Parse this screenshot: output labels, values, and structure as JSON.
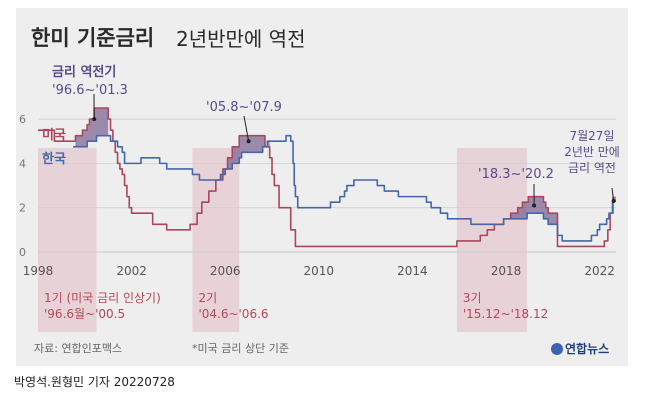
{
  "header": {
    "title_bold": "한미 기준금리",
    "title_rest": "2년반만에 역전"
  },
  "colors": {
    "us": "#a8485d",
    "korea": "#4567a8",
    "inversion_fill": "#7f6894",
    "period_shade": "#e4cdd2",
    "annotation_text": "#5a4a8a",
    "period_text": "#b04a5a"
  },
  "chart_data": {
    "type": "line",
    "title": "한미 기준금리 2년반만에 역전",
    "xlim": [
      1998,
      2022.7
    ],
    "ylim": [
      0,
      6.5
    ],
    "x_ticks": [
      1998,
      2002,
      2006,
      2010,
      2014,
      2018,
      2022
    ],
    "y_ticks": [
      0,
      2,
      4,
      6
    ],
    "series": [
      {
        "name": "미국",
        "step": true,
        "points": [
          [
            1998,
            5.5
          ],
          [
            1998.7,
            5.0
          ],
          [
            1999.5,
            5.0
          ],
          [
            1999.6,
            5.25
          ],
          [
            1999.9,
            5.5
          ],
          [
            2000.1,
            5.75
          ],
          [
            2000.2,
            6.0
          ],
          [
            2000.4,
            6.5
          ],
          [
            2001.0,
            6.0
          ],
          [
            2001.1,
            5.5
          ],
          [
            2001.2,
            5.0
          ],
          [
            2001.3,
            4.5
          ],
          [
            2001.4,
            4.0
          ],
          [
            2001.5,
            3.75
          ],
          [
            2001.6,
            3.5
          ],
          [
            2001.7,
            3.0
          ],
          [
            2001.8,
            2.5
          ],
          [
            2001.9,
            2.0
          ],
          [
            2002.0,
            1.75
          ],
          [
            2002.9,
            1.25
          ],
          [
            2003.5,
            1.0
          ],
          [
            2004.5,
            1.25
          ],
          [
            2004.8,
            1.75
          ],
          [
            2005.0,
            2.25
          ],
          [
            2005.3,
            2.75
          ],
          [
            2005.6,
            3.25
          ],
          [
            2005.9,
            3.75
          ],
          [
            2006.1,
            4.25
          ],
          [
            2006.3,
            4.75
          ],
          [
            2006.6,
            5.25
          ],
          [
            2007.7,
            4.75
          ],
          [
            2007.9,
            4.25
          ],
          [
            2008.0,
            3.5
          ],
          [
            2008.1,
            3.0
          ],
          [
            2008.3,
            2.0
          ],
          [
            2008.8,
            1.0
          ],
          [
            2009.0,
            0.25
          ],
          [
            2015.9,
            0.5
          ],
          [
            2016.9,
            0.75
          ],
          [
            2017.2,
            1.0
          ],
          [
            2017.5,
            1.25
          ],
          [
            2017.9,
            1.5
          ],
          [
            2018.2,
            1.75
          ],
          [
            2018.5,
            2.0
          ],
          [
            2018.7,
            2.25
          ],
          [
            2018.95,
            2.5
          ],
          [
            2019.6,
            2.25
          ],
          [
            2019.7,
            2.0
          ],
          [
            2019.8,
            1.75
          ],
          [
            2020.2,
            0.25
          ],
          [
            2022.2,
            0.5
          ],
          [
            2022.35,
            1.0
          ],
          [
            2022.45,
            1.75
          ],
          [
            2022.57,
            2.5
          ]
        ]
      },
      {
        "name": "한국",
        "step": true,
        "points": [
          [
            1999.5,
            4.75
          ],
          [
            2000.1,
            5.0
          ],
          [
            2000.5,
            5.25
          ],
          [
            2001.1,
            5.0
          ],
          [
            2001.4,
            4.75
          ],
          [
            2001.6,
            4.5
          ],
          [
            2001.7,
            4.0
          ],
          [
            2002.4,
            4.25
          ],
          [
            2003.2,
            4.0
          ],
          [
            2003.5,
            3.75
          ],
          [
            2004.6,
            3.5
          ],
          [
            2004.9,
            3.25
          ],
          [
            2005.8,
            3.5
          ],
          [
            2006.0,
            3.75
          ],
          [
            2006.3,
            4.0
          ],
          [
            2006.6,
            4.25
          ],
          [
            2006.7,
            4.5
          ],
          [
            2007.6,
            4.75
          ],
          [
            2007.8,
            5.0
          ],
          [
            2008.6,
            5.25
          ],
          [
            2008.8,
            5.0
          ],
          [
            2008.9,
            4.0
          ],
          [
            2008.95,
            3.0
          ],
          [
            2009.0,
            2.5
          ],
          [
            2009.1,
            2.0
          ],
          [
            2010.5,
            2.25
          ],
          [
            2010.9,
            2.5
          ],
          [
            2011.1,
            2.75
          ],
          [
            2011.2,
            3.0
          ],
          [
            2011.5,
            3.25
          ],
          [
            2012.5,
            3.0
          ],
          [
            2012.8,
            2.75
          ],
          [
            2013.4,
            2.5
          ],
          [
            2014.6,
            2.25
          ],
          [
            2014.8,
            2.0
          ],
          [
            2015.2,
            1.75
          ],
          [
            2015.5,
            1.5
          ],
          [
            2016.5,
            1.25
          ],
          [
            2017.9,
            1.5
          ],
          [
            2018.9,
            1.75
          ],
          [
            2019.6,
            1.5
          ],
          [
            2019.8,
            1.25
          ],
          [
            2020.2,
            0.75
          ],
          [
            2020.4,
            0.5
          ],
          [
            2021.65,
            0.75
          ],
          [
            2021.9,
            1.0
          ],
          [
            2022.0,
            1.25
          ],
          [
            2022.3,
            1.5
          ],
          [
            2022.4,
            1.75
          ],
          [
            2022.55,
            2.25
          ],
          [
            2022.6,
            2.25
          ]
        ]
      }
    ],
    "legend": [
      "미국",
      "한국"
    ],
    "inversion_periods": [
      {
        "start": 1999.6,
        "end": 2001.0,
        "label_lines": [
          "금리 역전기",
          "'96.6~'01.3"
        ],
        "anchor": [
          2000.4,
          6.3
        ]
      },
      {
        "start": 2005.8,
        "end": 2007.9,
        "label_lines": [
          "'05.8~'07.9"
        ],
        "anchor": [
          2007.0,
          5.1
        ]
      },
      {
        "start": 2018.2,
        "end": 2020.2,
        "label_lines": [
          "'18.3~'20.2"
        ],
        "anchor": [
          2019.2,
          2.45
        ]
      },
      {
        "start": 2022.55,
        "end": 2022.7,
        "label_lines": [
          "7월27일",
          "2년반 만에",
          "금리 역전"
        ],
        "anchor": [
          2022.6,
          2.45
        ]
      }
    ],
    "hike_periods": [
      {
        "start": 1998.0,
        "end": 2000.5,
        "label_lines": [
          "1기 (미국 금리 인상기)",
          "'96.6월~'00.5"
        ]
      },
      {
        "start": 2004.6,
        "end": 2006.6,
        "label_lines": [
          "2기",
          "'04.6~'06.6"
        ]
      },
      {
        "start": 2015.9,
        "end": 2018.9,
        "label_lines": [
          "3기",
          "'15.12~'18.12"
        ]
      }
    ]
  },
  "footer": {
    "source": "자료: 연합인포맥스",
    "note": "*미국 금리 상단 기준",
    "brand": "연합뉴스",
    "credit": "박영석.원형민 기자  20220728"
  }
}
